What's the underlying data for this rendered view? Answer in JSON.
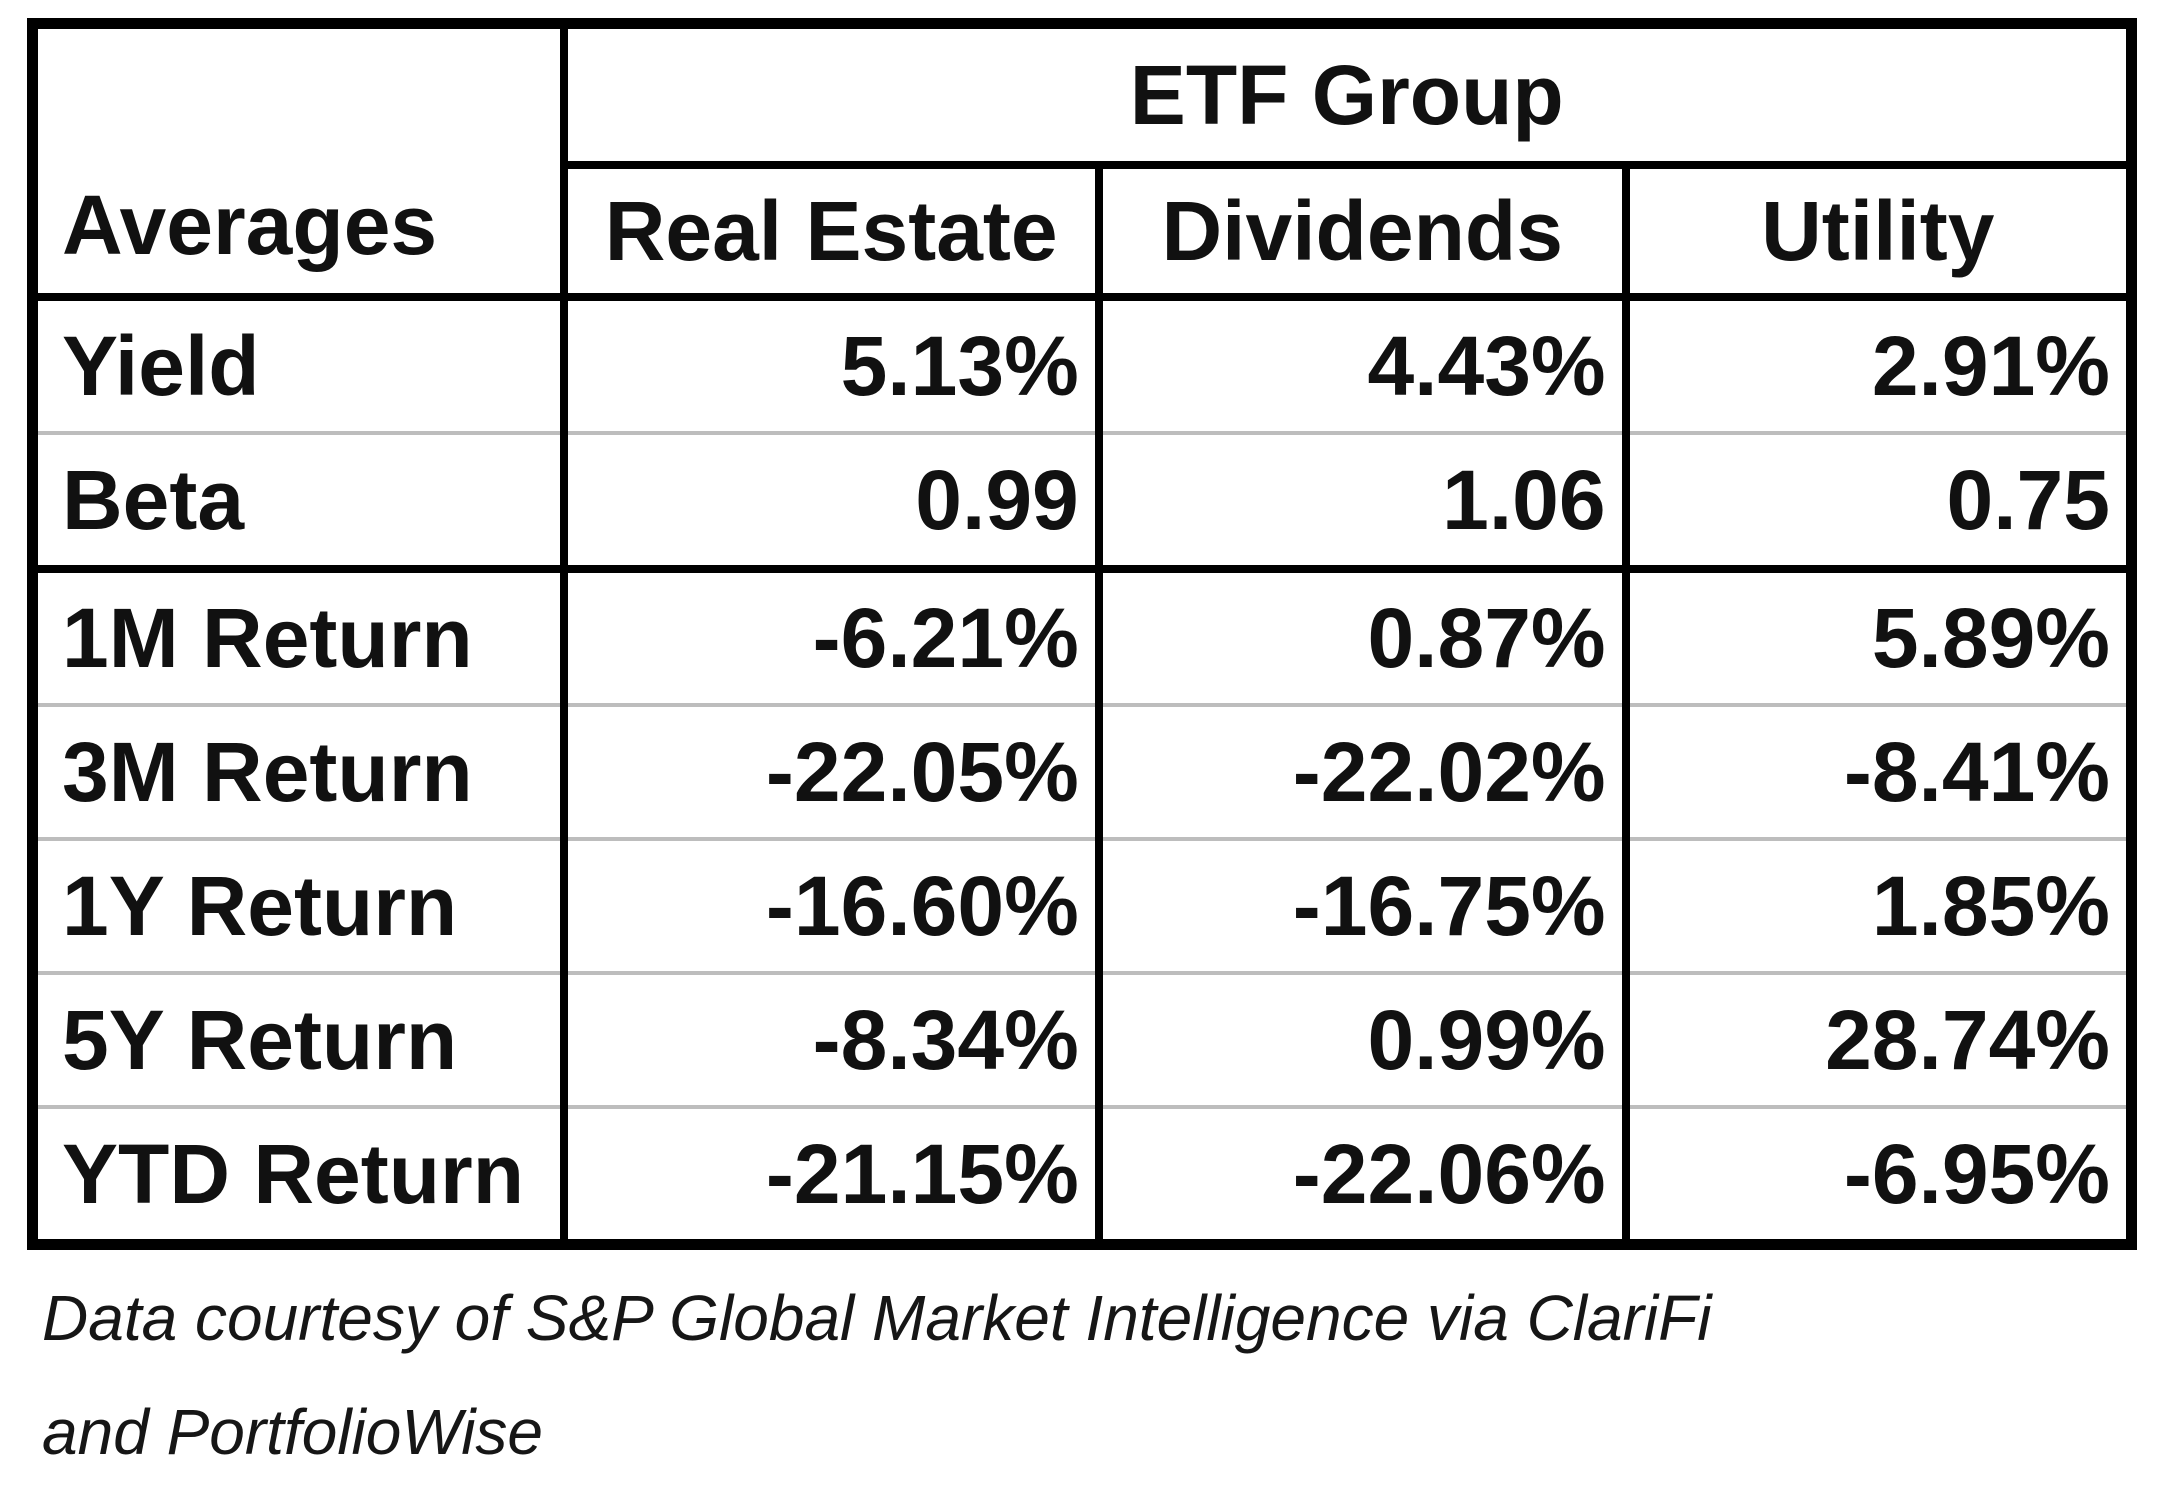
{
  "table": {
    "corner_label": "Averages",
    "group_header": "ETF Group",
    "columns": [
      "Real Estate",
      "Dividends",
      "Utility"
    ],
    "rows": [
      {
        "label": "Yield",
        "values": [
          "5.13%",
          "4.43%",
          "2.91%"
        ]
      },
      {
        "label": "Beta",
        "values": [
          "0.99",
          "1.06",
          "0.75"
        ]
      },
      {
        "label": "1M Return",
        "values": [
          "-6.21%",
          "0.87%",
          "5.89%"
        ]
      },
      {
        "label": "3M Return",
        "values": [
          "-22.05%",
          "-22.02%",
          "-8.41%"
        ]
      },
      {
        "label": "1Y Return",
        "values": [
          "-16.60%",
          "-16.75%",
          "1.85%"
        ]
      },
      {
        "label": "5Y Return",
        "values": [
          "-8.34%",
          "0.99%",
          "28.74%"
        ]
      },
      {
        "label": "YTD Return",
        "values": [
          "-21.15%",
          "-22.06%",
          "-6.95%"
        ]
      }
    ]
  },
  "caption": {
    "line1": "Data courtesy of S&P Global Market Intelligence via ClariFi",
    "line2": "and PortfolioWise"
  },
  "colors": {
    "text": "#111111",
    "border": "#000000",
    "row_divider": "#bdbdbd",
    "background": "#ffffff"
  },
  "chart_data": {
    "type": "table",
    "title": "ETF Group",
    "row_header_title": "Averages",
    "categories": [
      "Yield",
      "Beta",
      "1M Return",
      "3M Return",
      "1Y Return",
      "5Y Return",
      "YTD Return"
    ],
    "series": [
      {
        "name": "Real Estate",
        "values": [
          5.13,
          0.99,
          -6.21,
          -22.05,
          -16.6,
          -8.34,
          -21.15
        ]
      },
      {
        "name": "Dividends",
        "values": [
          4.43,
          1.06,
          0.87,
          -22.02,
          -16.75,
          0.99,
          -22.06
        ]
      },
      {
        "name": "Utility",
        "values": [
          2.91,
          0.75,
          5.89,
          -8.41,
          1.85,
          28.74,
          -6.95
        ]
      }
    ],
    "value_format": "percent except Beta row (ratio)",
    "legend_position": "none",
    "grid": "on"
  }
}
